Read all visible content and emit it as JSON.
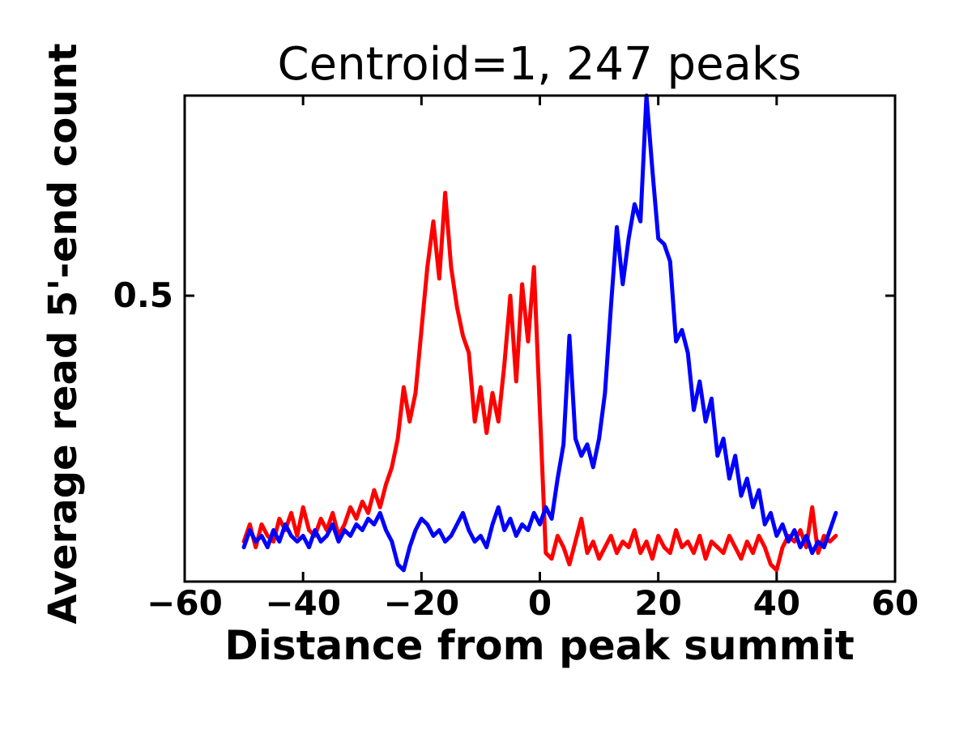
{
  "chart_data": {
    "type": "line",
    "title": "Centroid=1, 247 peaks",
    "xlabel": "Distance from peak summit",
    "ylabel": "Average read 5'-end count",
    "xlim": [
      -60,
      60
    ],
    "ylim": [
      0,
      0.85
    ],
    "grid": false,
    "legend": null,
    "xticks": {
      "values": [
        -60,
        -40,
        -20,
        0,
        20,
        40,
        60
      ],
      "labels": [
        "−60",
        "−40",
        "−20",
        "0",
        "20",
        "40",
        "60"
      ]
    },
    "yticks": {
      "values": [
        0.5
      ],
      "labels": [
        "0.5"
      ]
    },
    "x_start": -50,
    "x_step": 1,
    "series": [
      {
        "name": "red",
        "color": "#ff0000",
        "linewidth": 5,
        "values": [
          0.07,
          0.1,
          0.06,
          0.1,
          0.08,
          0.07,
          0.11,
          0.09,
          0.12,
          0.08,
          0.13,
          0.09,
          0.08,
          0.11,
          0.09,
          0.12,
          0.08,
          0.1,
          0.13,
          0.11,
          0.14,
          0.12,
          0.16,
          0.13,
          0.17,
          0.2,
          0.25,
          0.34,
          0.28,
          0.33,
          0.44,
          0.55,
          0.63,
          0.53,
          0.68,
          0.55,
          0.48,
          0.43,
          0.4,
          0.28,
          0.34,
          0.26,
          0.33,
          0.28,
          0.38,
          0.5,
          0.35,
          0.52,
          0.42,
          0.55,
          0.3,
          0.05,
          0.04,
          0.08,
          0.06,
          0.03,
          0.07,
          0.11,
          0.05,
          0.07,
          0.04,
          0.06,
          0.08,
          0.05,
          0.07,
          0.06,
          0.09,
          0.05,
          0.07,
          0.04,
          0.08,
          0.06,
          0.05,
          0.09,
          0.06,
          0.07,
          0.05,
          0.08,
          0.04,
          0.07,
          0.06,
          0.05,
          0.08,
          0.06,
          0.04,
          0.07,
          0.05,
          0.08,
          0.06,
          0.03,
          0.02,
          0.06,
          0.08,
          0.07,
          0.09,
          0.06,
          0.13,
          0.05,
          0.08,
          0.07,
          0.08
        ]
      },
      {
        "name": "blue",
        "color": "#0000ff",
        "linewidth": 5,
        "values": [
          0.06,
          0.09,
          0.07,
          0.08,
          0.06,
          0.09,
          0.07,
          0.1,
          0.08,
          0.07,
          0.08,
          0.06,
          0.09,
          0.07,
          0.08,
          0.1,
          0.07,
          0.09,
          0.08,
          0.1,
          0.09,
          0.11,
          0.1,
          0.12,
          0.09,
          0.07,
          0.03,
          0.02,
          0.06,
          0.09,
          0.11,
          0.1,
          0.08,
          0.09,
          0.07,
          0.08,
          0.1,
          0.12,
          0.09,
          0.07,
          0.08,
          0.06,
          0.1,
          0.13,
          0.09,
          0.11,
          0.08,
          0.1,
          0.09,
          0.12,
          0.1,
          0.13,
          0.11,
          0.18,
          0.24,
          0.43,
          0.25,
          0.22,
          0.24,
          0.2,
          0.25,
          0.33,
          0.48,
          0.62,
          0.52,
          0.6,
          0.66,
          0.63,
          0.85,
          0.72,
          0.6,
          0.59,
          0.56,
          0.42,
          0.44,
          0.4,
          0.3,
          0.35,
          0.28,
          0.32,
          0.22,
          0.25,
          0.18,
          0.22,
          0.15,
          0.18,
          0.13,
          0.16,
          0.1,
          0.12,
          0.08,
          0.1,
          0.07,
          0.09,
          0.06,
          0.08,
          0.05,
          0.07,
          0.06,
          0.09,
          0.12
        ]
      }
    ],
    "axis_color": "#000000",
    "background_color": "#ffffff"
  }
}
